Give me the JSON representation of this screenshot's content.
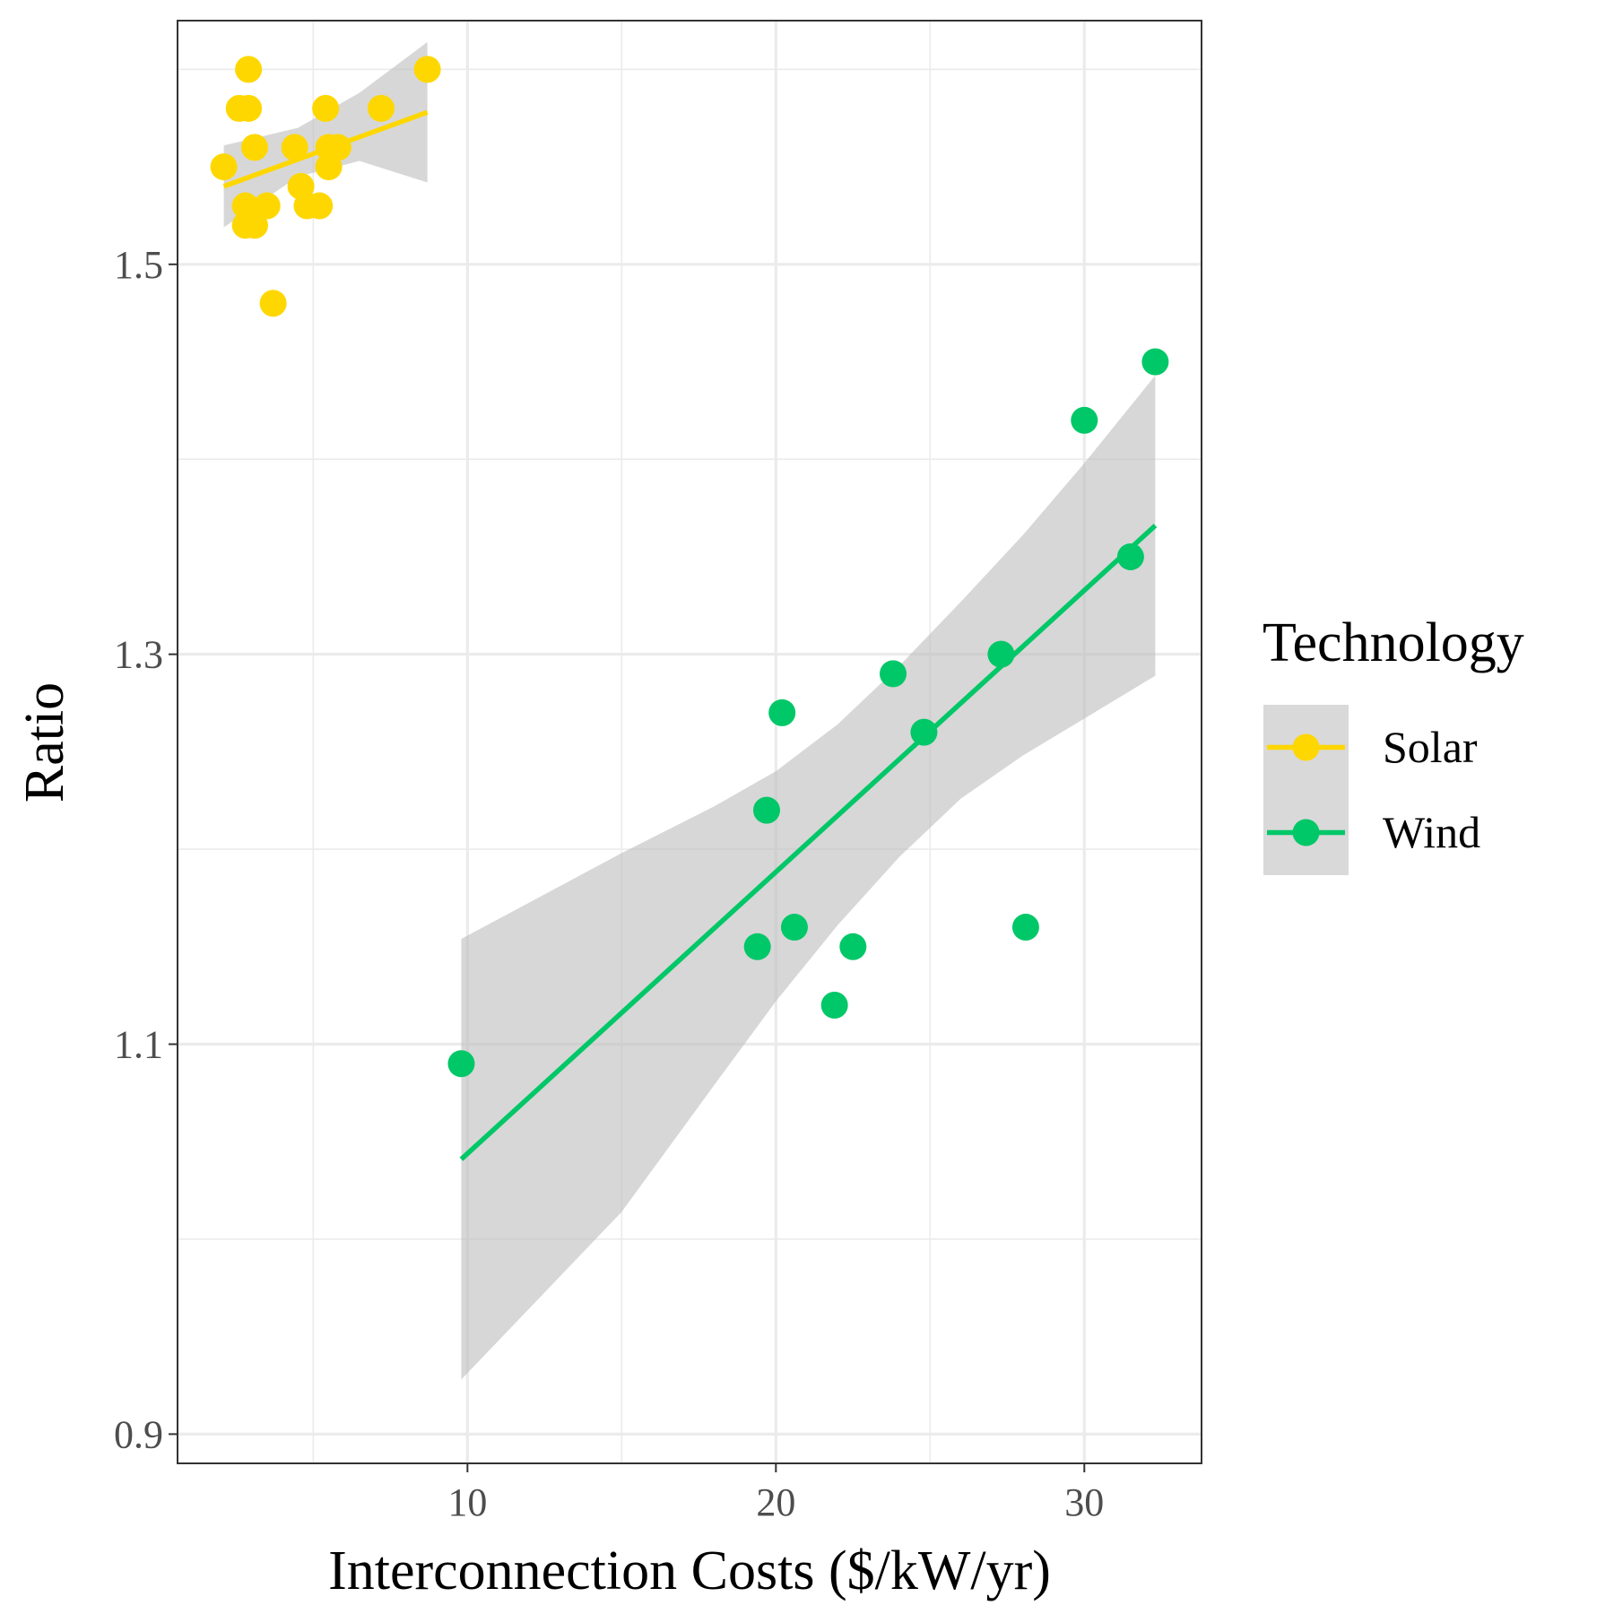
{
  "chart_data": {
    "type": "scatter",
    "title": "",
    "xlabel": "Interconnection Costs ($/kW/yr)",
    "ylabel": "Ratio",
    "xlim": [
      0.6,
      33.8
    ],
    "ylim": [
      0.885,
      1.625
    ],
    "x_ticks": [
      10,
      20,
      30
    ],
    "x_tick_labels": [
      "10",
      "20",
      "30"
    ],
    "y_ticks": [
      0.9,
      1.1,
      1.3,
      1.5
    ],
    "y_tick_labels": [
      "0.9",
      "1.1",
      "1.3",
      "1.5"
    ],
    "x_minor_ticks": [
      5,
      15,
      25
    ],
    "y_minor_ticks": [
      1.0,
      1.2,
      1.4,
      1.6
    ],
    "grid": true,
    "legend": {
      "title": "Technology",
      "position": "right"
    },
    "series": [
      {
        "name": "Solar",
        "color": "#FFD700",
        "points": [
          {
            "x": 2.1,
            "y": 1.55
          },
          {
            "x": 2.6,
            "y": 1.58
          },
          {
            "x": 2.9,
            "y": 1.6
          },
          {
            "x": 2.9,
            "y": 1.58
          },
          {
            "x": 3.1,
            "y": 1.56
          },
          {
            "x": 2.8,
            "y": 1.53
          },
          {
            "x": 2.8,
            "y": 1.52
          },
          {
            "x": 3.1,
            "y": 1.52
          },
          {
            "x": 3.5,
            "y": 1.53
          },
          {
            "x": 3.7,
            "y": 1.48
          },
          {
            "x": 4.4,
            "y": 1.56
          },
          {
            "x": 4.6,
            "y": 1.54
          },
          {
            "x": 4.8,
            "y": 1.53
          },
          {
            "x": 5.2,
            "y": 1.53
          },
          {
            "x": 5.4,
            "y": 1.58
          },
          {
            "x": 5.5,
            "y": 1.55
          },
          {
            "x": 5.5,
            "y": 1.56
          },
          {
            "x": 5.8,
            "y": 1.56
          },
          {
            "x": 7.2,
            "y": 1.58
          },
          {
            "x": 8.7,
            "y": 1.6
          }
        ],
        "fit": {
          "x": [
            2.1,
            8.7
          ],
          "y": [
            1.54,
            1.578
          ]
        },
        "ci_upper": [
          {
            "x": 2.1,
            "y": 1.561
          },
          {
            "x": 4.5,
            "y": 1.57
          },
          {
            "x": 6.5,
            "y": 1.588
          },
          {
            "x": 8.7,
            "y": 1.614
          }
        ],
        "ci_lower": [
          {
            "x": 2.1,
            "y": 1.519
          },
          {
            "x": 4.5,
            "y": 1.545
          },
          {
            "x": 6.5,
            "y": 1.553
          },
          {
            "x": 8.7,
            "y": 1.542
          }
        ]
      },
      {
        "name": "Wind",
        "color": "#00C767",
        "points": [
          {
            "x": 9.8,
            "y": 1.09
          },
          {
            "x": 19.4,
            "y": 1.15
          },
          {
            "x": 19.7,
            "y": 1.22
          },
          {
            "x": 20.2,
            "y": 1.27
          },
          {
            "x": 20.6,
            "y": 1.16
          },
          {
            "x": 21.9,
            "y": 1.12
          },
          {
            "x": 22.5,
            "y": 1.15
          },
          {
            "x": 23.8,
            "y": 1.29
          },
          {
            "x": 24.8,
            "y": 1.26
          },
          {
            "x": 27.3,
            "y": 1.3
          },
          {
            "x": 28.1,
            "y": 1.16
          },
          {
            "x": 30.0,
            "y": 1.42
          },
          {
            "x": 31.5,
            "y": 1.35
          },
          {
            "x": 32.3,
            "y": 1.45
          }
        ],
        "fit": {
          "x": [
            9.8,
            32.3
          ],
          "y": [
            1.041,
            1.366
          ]
        },
        "ci_upper": [
          {
            "x": 9.8,
            "y": 1.154
          },
          {
            "x": 15,
            "y": 1.198
          },
          {
            "x": 18,
            "y": 1.222
          },
          {
            "x": 20,
            "y": 1.24
          },
          {
            "x": 22,
            "y": 1.264
          },
          {
            "x": 24,
            "y": 1.294
          },
          {
            "x": 26,
            "y": 1.327
          },
          {
            "x": 28,
            "y": 1.361
          },
          {
            "x": 30,
            "y": 1.398
          },
          {
            "x": 32.3,
            "y": 1.443
          }
        ],
        "ci_lower": [
          {
            "x": 9.8,
            "y": 0.928
          },
          {
            "x": 15,
            "y": 1.014
          },
          {
            "x": 18,
            "y": 1.079
          },
          {
            "x": 20,
            "y": 1.122
          },
          {
            "x": 22,
            "y": 1.161
          },
          {
            "x": 24,
            "y": 1.196
          },
          {
            "x": 26,
            "y": 1.226
          },
          {
            "x": 28,
            "y": 1.248
          },
          {
            "x": 30,
            "y": 1.267
          },
          {
            "x": 32.3,
            "y": 1.289
          }
        ]
      }
    ],
    "ci_color": "#BEBEBE"
  }
}
